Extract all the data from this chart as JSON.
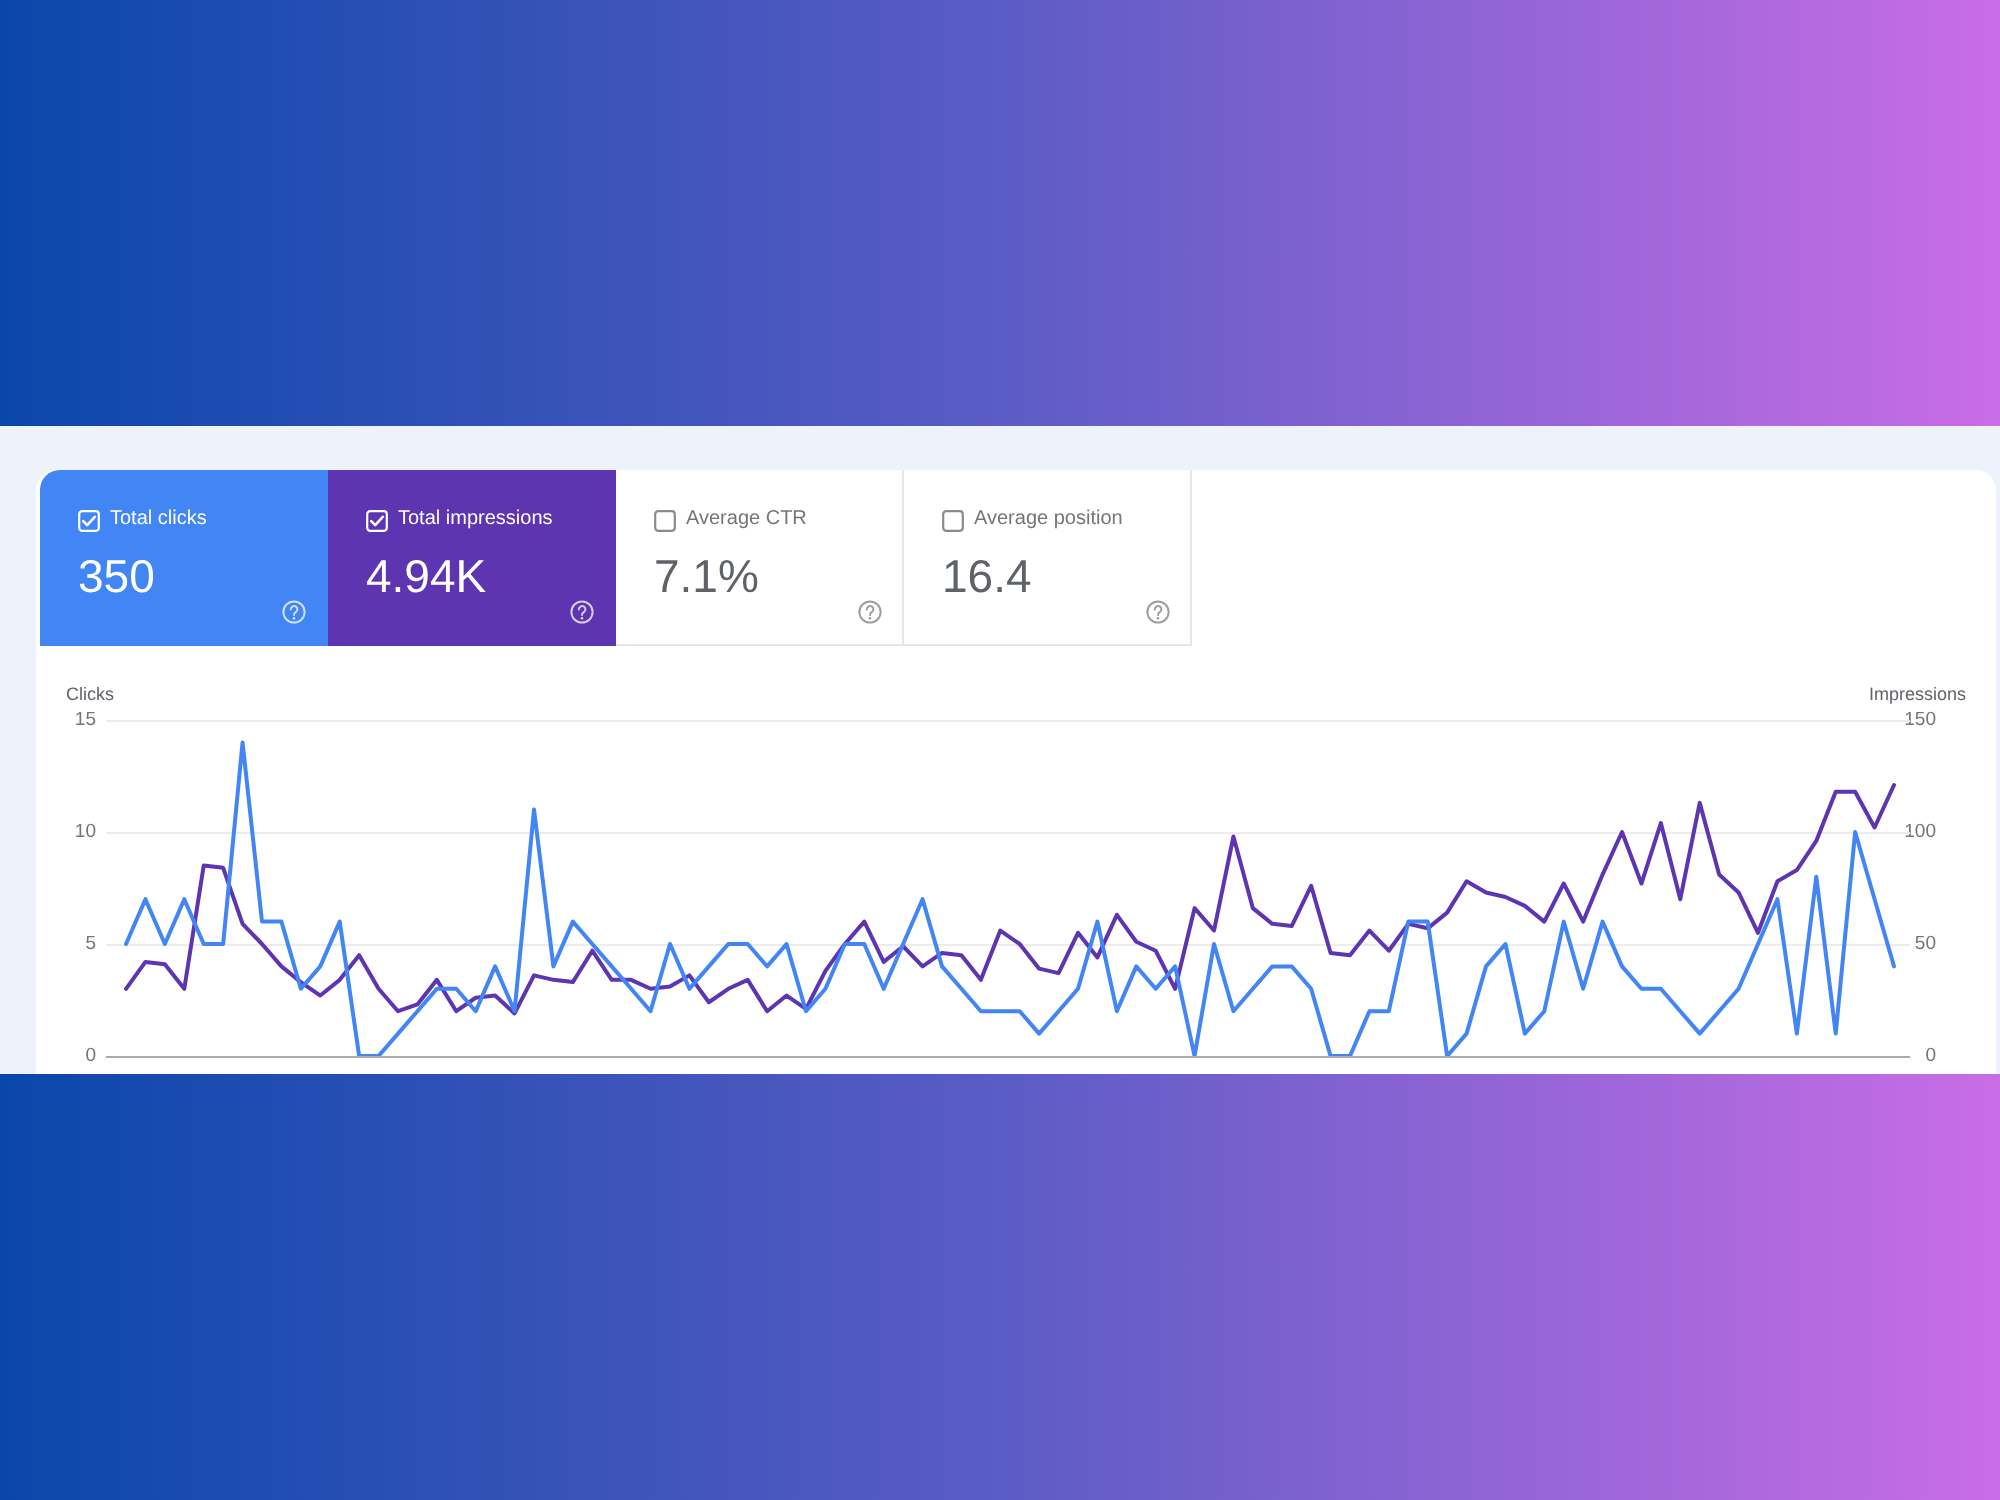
{
  "chart_data": [
    {
      "type": "other",
      "categories": [
        "Total clicks",
        "Total impressions",
        "Average CTR",
        "Average position"
      ],
      "value_labels": [
        "350",
        "4.94K",
        "7.1%",
        "16.4"
      ],
      "colors": [
        "#4285f4",
        "#5e35b1",
        null,
        null
      ]
    },
    {
      "type": "line",
      "ylabel": "Clicks",
      "y2label": "Impressions",
      "categories": [
        null,
        null,
        null,
        null,
        null,
        null,
        null,
        null,
        null,
        null,
        null,
        null,
        null,
        null,
        null,
        null,
        null,
        null,
        null,
        null,
        null,
        null,
        null,
        null,
        null,
        null,
        null,
        null,
        null,
        null,
        null,
        null,
        null,
        null,
        null,
        null,
        null,
        null,
        null,
        null,
        null,
        null,
        null,
        null,
        null,
        null,
        null,
        null,
        null,
        null,
        null,
        null,
        null,
        null,
        null,
        null,
        null,
        null,
        null,
        null,
        null,
        null,
        null,
        null,
        null,
        null,
        null,
        null,
        null,
        null,
        null,
        null,
        null,
        null,
        null,
        null,
        null,
        null,
        null,
        null,
        null,
        null,
        null,
        null,
        null,
        null,
        null,
        null,
        null,
        null,
        null,
        null
      ],
      "series": [
        {
          "color": "#4285f4",
          "values": [
            5,
            7,
            5,
            7,
            5,
            5,
            14,
            6,
            6,
            3,
            4,
            6,
            0,
            0,
            1,
            2,
            3,
            3,
            2,
            4,
            2,
            11,
            4,
            6,
            5,
            4,
            3,
            2,
            5,
            3,
            4,
            5,
            5,
            4,
            5,
            2,
            3,
            5,
            5,
            3,
            5,
            7,
            4,
            3,
            2,
            2,
            2,
            1,
            2,
            3,
            6,
            2,
            4,
            3,
            4,
            0,
            5,
            2,
            3,
            4,
            4,
            3,
            0,
            0,
            2,
            2,
            6,
            6,
            0,
            1,
            4,
            5,
            1,
            2,
            6,
            3,
            6,
            4,
            3,
            3,
            2,
            1,
            2,
            3,
            5,
            7,
            1,
            8,
            1,
            10,
            7,
            4
          ]
        },
        {
          "color": "#5e35b1",
          "axis": "y2",
          "values": [
            30,
            42,
            41,
            30,
            85,
            84,
            59,
            50,
            40,
            33,
            27,
            34,
            45,
            30,
            20,
            23,
            34,
            20,
            26,
            27,
            19,
            36,
            34,
            33,
            47,
            34,
            34,
            30,
            31,
            36,
            24,
            30,
            34,
            20,
            27,
            21,
            38,
            50,
            60,
            42,
            49,
            40,
            46,
            45,
            34,
            56,
            50,
            39,
            37,
            55,
            44,
            63,
            51,
            47,
            30,
            66,
            56,
            98,
            66,
            59,
            58,
            76,
            46,
            45,
            56,
            47,
            59,
            57,
            64,
            78,
            73,
            71,
            67,
            60,
            77,
            60,
            81,
            100,
            77,
            104,
            70,
            113,
            81,
            73,
            55,
            78,
            83,
            96,
            118,
            118,
            102,
            121
          ]
        }
      ],
      "ylim": [
        0,
        15
      ],
      "yticks": [
        0,
        5,
        10,
        15
      ],
      "y2lim": [
        0,
        150
      ],
      "y2ticks": [
        0,
        50,
        100,
        150
      ],
      "grid": "y",
      "legend": false,
      "marker": "none"
    }
  ]
}
